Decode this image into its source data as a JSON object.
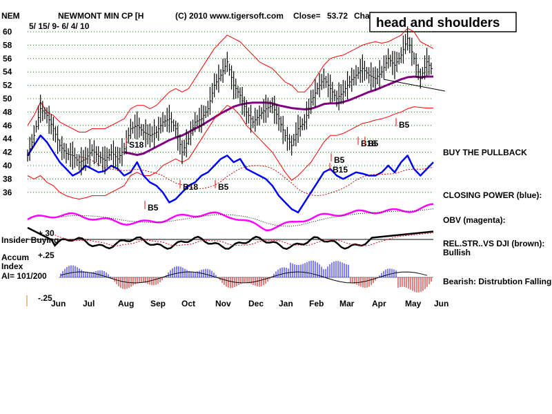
{
  "header": {
    "ticker": "NEM",
    "company": "NEWMONT MIN CP [H",
    "copyright": "(C) 2010 www.tigersoft.com",
    "close_label": "Close=",
    "close_value": "53.72",
    "change_label": "Cha",
    "date_range": "5/ 15/ 9- 6/ 4/ 10"
  },
  "callout": "head and shoulders",
  "chart_data": {
    "type": "line",
    "title": "NEWMONT MIN CP [H",
    "y_ticks": [
      60,
      58,
      56,
      54,
      52,
      50,
      48,
      46,
      44,
      42,
      40,
      38,
      36
    ],
    "ylim": [
      35,
      61
    ],
    "months": [
      "Jun",
      "Jul",
      "Aug",
      "Sep",
      "Oct",
      "Nov",
      "Dec",
      "Jan",
      "Feb",
      "Mar",
      "Apr",
      "May",
      "Jun"
    ],
    "series": [
      {
        "name": "price",
        "color": "#000000",
        "values": [
          41.5,
          44.5,
          48.5,
          47.5,
          45.5,
          43.0,
          41.8,
          41.5,
          40.5,
          41.0,
          42.3,
          41.4,
          40.8,
          42.0,
          41.0,
          42.5,
          45.5,
          46.0,
          45.0,
          44.5,
          45.0,
          46.5,
          47.0,
          45.5,
          42.0,
          44.0,
          46.5,
          47.0,
          48.5,
          52.0,
          53.5,
          55.5,
          52.0,
          50.5,
          48.0,
          46.5,
          47.5,
          48.5,
          49.0,
          47.0,
          44.5,
          43.0,
          45.5,
          46.5,
          49.5,
          51.5,
          53.0,
          51.5,
          50.0,
          51.0,
          52.5,
          53.5,
          54.5,
          53.5,
          53.0,
          54.0,
          56.0,
          55.0,
          56.5,
          59.0,
          56.0,
          53.0,
          55.5,
          54.0
        ]
      },
      {
        "name": "ma",
        "color": "#800080",
        "values": [
          null,
          null,
          null,
          null,
          null,
          null,
          null,
          null,
          null,
          null,
          null,
          null,
          null,
          null,
          null,
          42.0,
          41.8,
          41.6,
          41.8,
          42.3,
          42.8,
          43.3,
          43.8,
          44.2,
          44.5,
          45.0,
          45.5,
          46.0,
          46.6,
          47.2,
          47.8,
          48.3,
          48.8,
          49.1,
          49.3,
          49.4,
          49.4,
          49.4,
          49.3,
          49.0,
          48.8,
          48.6,
          48.5,
          48.4,
          48.5,
          48.8,
          49.2,
          49.3,
          49.3,
          49.5,
          49.8,
          50.2,
          50.6,
          51.0,
          51.3,
          51.7,
          52.1,
          52.5,
          52.9,
          53.2,
          53.3,
          53.2,
          53.3,
          53.3
        ]
      },
      {
        "name": "upper-band",
        "color": "#ff0000",
        "values": [
          46.0,
          47.5,
          49.5,
          48.0,
          47.5,
          46.5,
          46.0,
          45.5,
          45.0,
          45.0,
          45.5,
          45.5,
          45.5,
          46.0,
          46.5,
          47.0,
          48.5,
          49.0,
          49.0,
          48.5,
          49.0,
          50.0,
          51.0,
          51.5,
          51.0,
          51.5,
          53.0,
          54.5,
          56.0,
          57.5,
          58.5,
          59.5,
          59.0,
          58.5,
          57.5,
          56.5,
          55.5,
          55.0,
          54.5,
          53.5,
          52.5,
          52.0,
          51.0,
          51.0,
          52.0,
          53.5,
          55.0,
          56.0,
          56.3,
          56.5,
          57.0,
          57.5,
          58.0,
          58.3,
          58.5,
          58.3,
          58.5,
          59.0,
          59.5,
          60.5,
          60.0,
          58.5,
          58.0,
          57.5
        ]
      },
      {
        "name": "lower-band",
        "color": "#ff0000",
        "values": [
          38.5,
          38.0,
          38.5,
          37.5,
          37.0,
          36.0,
          35.5,
          35.2,
          35.0,
          35.2,
          35.5,
          35.5,
          35.5,
          36.0,
          36.5,
          37.0,
          38.5,
          39.0,
          38.5,
          38.5,
          39.0,
          40.0,
          40.5,
          41.0,
          40.5,
          41.0,
          42.5,
          44.0,
          45.5,
          47.0,
          48.0,
          49.0,
          48.5,
          47.5,
          46.0,
          45.0,
          44.0,
          43.0,
          42.0,
          40.5,
          39.0,
          37.8,
          38.5,
          39.5,
          40.5,
          42.0,
          43.5,
          44.5,
          44.5,
          44.8,
          45.3,
          45.8,
          46.3,
          46.5,
          46.8,
          47.0,
          47.3,
          47.7,
          48.0,
          48.5,
          48.8,
          48.7,
          48.6,
          48.6
        ]
      },
      {
        "name": "closing-power",
        "color": "#0000ff",
        "values": [
          41.5,
          43.0,
          44.5,
          43.5,
          42.0,
          40.5,
          39.5,
          38.5,
          39.0,
          40.0,
          39.5,
          39.0,
          39.2,
          40.0,
          39.5,
          38.5,
          39.0,
          40.5,
          38.5,
          37.5,
          37.0,
          36.0,
          34.5,
          35.0,
          36.0,
          37.0,
          37.5,
          38.5,
          39.0,
          40.0,
          41.0,
          41.5,
          40.5,
          41.0,
          39.5,
          39.0,
          38.5,
          38.0,
          37.0,
          35.5,
          34.5,
          33.5,
          33.0,
          34.5,
          36.0,
          37.5,
          39.0,
          39.5,
          38.5,
          38.0,
          38.5,
          39.0,
          38.8,
          38.5,
          38.5,
          39.0,
          40.0,
          39.0,
          40.5,
          41.5,
          39.5,
          38.5,
          39.5,
          40.5
        ]
      }
    ],
    "signals": [
      "S18",
      "B5",
      "B18",
      "B5",
      "B5",
      "B15",
      "B18",
      "B5",
      "B5"
    ],
    "rel_str_value": "+.30",
    "accum_upper": "+.25",
    "accum_lower": "-.25"
  },
  "left_labels": {
    "insider_buying": "Insider Buying",
    "accum_line1": "Accum",
    "accum_line2": "Index",
    "ai": "AI= 101/200"
  },
  "side_labels": {
    "buy_pullback": "BUY THE PULLBACK",
    "closing_power": "CLOSING POWER (blue):",
    "obv": "OBV (magenta):",
    "rel_str": "REL.STR..VS DJI (brown):",
    "bullish": "Bullish",
    "bearish": "Bearish: Distrubtion Falling."
  },
  "colors": {
    "price": "#000000",
    "band": "#ff0000",
    "ma": "#800080",
    "closing_power": "#0000ff",
    "obv": "#ff00ff",
    "accum_pos": "#0000ff",
    "accum_neg": "#cc0000",
    "grid": "#008000"
  }
}
